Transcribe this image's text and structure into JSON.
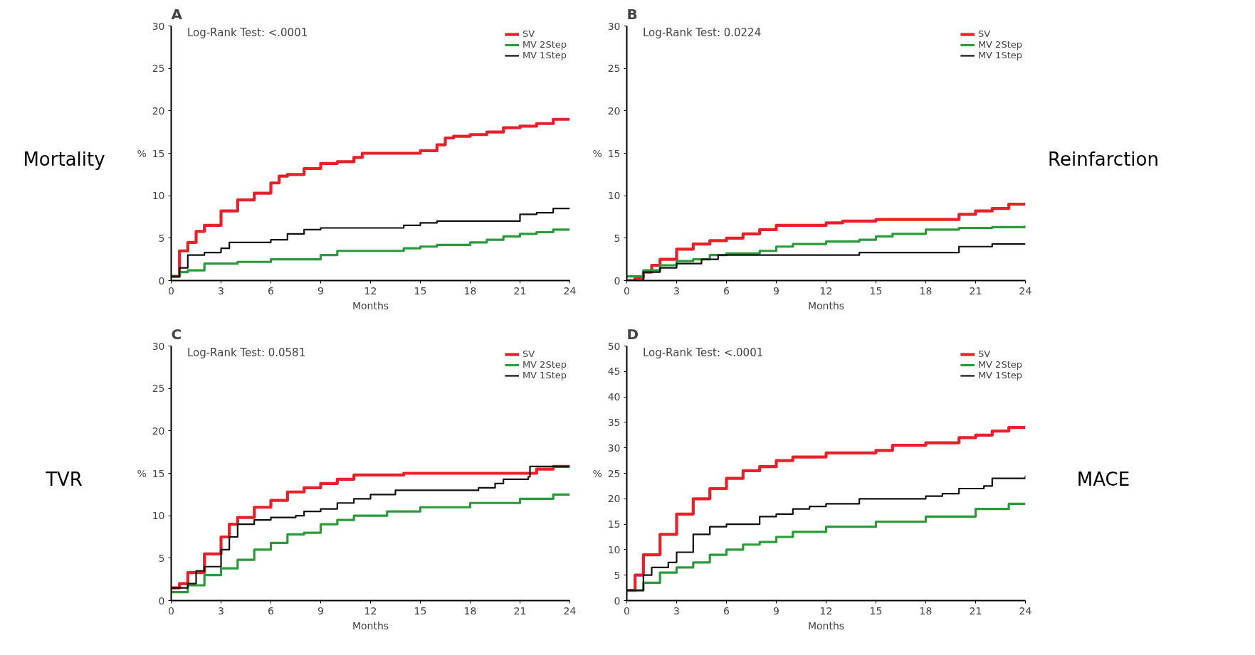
{
  "chart_data": [
    {
      "type": "step",
      "title": "A",
      "xlabel": "Months",
      "ylabel": "%",
      "annotations": [
        "Log-Rank Test: <.0001",
        "Mortality"
      ],
      "xlim": [
        0,
        24
      ],
      "ylim": [
        0,
        30
      ],
      "xticks": [
        0,
        3,
        6,
        9,
        12,
        15,
        18,
        21,
        24
      ],
      "yticks": [
        0,
        5,
        10,
        15,
        20,
        25,
        30
      ],
      "legend": "top right",
      "series": [
        {
          "name": "SV",
          "color": "#e8202a",
          "x": [
            0,
            0.5,
            1,
            1.5,
            2,
            3,
            4,
            5,
            6,
            6.5,
            7,
            8,
            9,
            10,
            11,
            11.5,
            13,
            14,
            15,
            16,
            16.5,
            17,
            18,
            19,
            20,
            21,
            22,
            23,
            24
          ],
          "values": [
            0.5,
            3.5,
            4.5,
            5.8,
            6.5,
            8.2,
            9.5,
            10.3,
            11.5,
            12.3,
            12.5,
            13.2,
            13.8,
            14,
            14.5,
            15,
            15,
            15,
            15.3,
            16,
            16.8,
            17,
            17.2,
            17.5,
            18,
            18.2,
            18.5,
            19,
            19
          ]
        },
        {
          "name": "MV 2Step",
          "color": "#2a9a3a",
          "x": [
            0,
            0.5,
            1,
            2,
            4,
            6,
            9,
            10,
            14,
            15,
            16,
            18,
            19,
            20,
            21,
            22,
            23,
            24
          ],
          "values": [
            0.5,
            1,
            1.2,
            2,
            2.2,
            2.5,
            3,
            3.5,
            3.8,
            4,
            4.2,
            4.5,
            4.8,
            5.2,
            5.5,
            5.7,
            6,
            6
          ]
        },
        {
          "name": "MV 1Step",
          "color": "#111111",
          "x": [
            0,
            0.5,
            1,
            2,
            3,
            3.5,
            5,
            6,
            7,
            8,
            9,
            13,
            14,
            15,
            16,
            20,
            21,
            22,
            23,
            24
          ],
          "values": [
            0.5,
            1.5,
            3,
            3.3,
            3.8,
            4.5,
            4.5,
            4.8,
            5.5,
            6,
            6.2,
            6.2,
            6.5,
            6.8,
            7,
            7,
            7.8,
            8,
            8.5,
            8.5
          ]
        }
      ]
    },
    {
      "type": "step",
      "title": "B",
      "xlabel": "Months",
      "ylabel": "%",
      "annotations": [
        "Log-Rank Test: 0.0224",
        "Reinfarction"
      ],
      "xlim": [
        0,
        24
      ],
      "ylim": [
        0,
        30
      ],
      "xticks": [
        0,
        3,
        6,
        9,
        12,
        15,
        18,
        21,
        24
      ],
      "yticks": [
        0,
        5,
        10,
        15,
        20,
        25,
        30
      ],
      "legend": "top right",
      "series": [
        {
          "name": "SV",
          "color": "#e8202a",
          "x": [
            0,
            0.5,
            1,
            1.5,
            2,
            3,
            4,
            5,
            6,
            7,
            8,
            9,
            11,
            12,
            13,
            15,
            18,
            20,
            21,
            22,
            23,
            24
          ],
          "values": [
            0,
            0.3,
            1,
            1.8,
            2.5,
            3.7,
            4.3,
            4.7,
            5,
            5.5,
            6,
            6.5,
            6.5,
            6.8,
            7,
            7.2,
            7.2,
            7.8,
            8.2,
            8.5,
            9,
            9
          ]
        },
        {
          "name": "MV 2Step",
          "color": "#2a9a3a",
          "x": [
            0,
            1,
            2,
            3,
            4,
            5,
            6,
            8,
            9,
            10,
            12,
            13,
            14,
            15,
            16,
            18,
            20,
            22,
            24
          ],
          "values": [
            0.5,
            1.2,
            1.8,
            2.3,
            2.5,
            3,
            3.2,
            3.5,
            4,
            4.3,
            4.6,
            4.6,
            4.8,
            5.2,
            5.5,
            6,
            6.2,
            6.3,
            6.5
          ]
        },
        {
          "name": "MV 1Step",
          "color": "#111111",
          "x": [
            0,
            1,
            2,
            3,
            4,
            4.5,
            5.5,
            13.5,
            14,
            19.5,
            20,
            21.5,
            22,
            24
          ],
          "values": [
            0,
            1,
            1.5,
            2,
            2,
            2.5,
            3,
            3,
            3.3,
            3.3,
            4,
            4,
            4.3,
            4.3
          ]
        }
      ]
    },
    {
      "type": "step",
      "title": "C",
      "xlabel": "Months",
      "ylabel": "%",
      "annotations": [
        "Log-Rank Test: 0.0581",
        "TVR"
      ],
      "xlim": [
        0,
        24
      ],
      "ylim": [
        0,
        30
      ],
      "xticks": [
        0,
        3,
        6,
        9,
        12,
        15,
        18,
        21,
        24
      ],
      "yticks": [
        0,
        5,
        10,
        15,
        20,
        25,
        30
      ],
      "legend": "top right",
      "series": [
        {
          "name": "SV",
          "color": "#e8202a",
          "x": [
            0,
            0.5,
            1,
            2,
            3,
            3.5,
            4,
            5,
            6,
            7,
            8,
            9,
            10,
            11,
            14,
            21.5,
            22,
            23,
            24
          ],
          "values": [
            1.5,
            2,
            3.3,
            5.5,
            7.5,
            9,
            9.8,
            11,
            11.8,
            12.8,
            13.3,
            13.8,
            14.3,
            14.8,
            15,
            15,
            15.5,
            15.8,
            15.8
          ]
        },
        {
          "name": "MV 2Step",
          "color": "#2a9a3a",
          "x": [
            0,
            1,
            2,
            3,
            4,
            5,
            6,
            7,
            8,
            9,
            10,
            11,
            13,
            15,
            18,
            21,
            23,
            24
          ],
          "values": [
            1,
            1.8,
            3,
            3.8,
            4.8,
            6,
            6.8,
            7.8,
            8,
            9,
            9.5,
            10,
            10.5,
            11,
            11.5,
            12,
            12.5,
            12.5
          ]
        },
        {
          "name": "MV 1Step",
          "color": "#111111",
          "x": [
            0,
            1,
            1.5,
            2,
            2.7,
            3,
            3.5,
            4,
            5,
            6,
            7.5,
            8,
            9,
            10,
            11,
            12,
            13.5,
            18.5,
            19.5,
            20,
            21.5,
            21.6,
            24
          ],
          "values": [
            1.5,
            2,
            3.5,
            4,
            4,
            6,
            7.5,
            9,
            9.5,
            9.8,
            10,
            10.5,
            10.8,
            11.5,
            12,
            12.5,
            13,
            13.3,
            13.8,
            14.3,
            14.6,
            15.8,
            15.8
          ]
        }
      ]
    },
    {
      "type": "step",
      "title": "D",
      "xlabel": "Months",
      "ylabel": "%",
      "annotations": [
        "Log-Rank Test: <.0001",
        "MACE"
      ],
      "xlim": [
        0,
        24
      ],
      "ylim": [
        0,
        50
      ],
      "xticks": [
        0,
        3,
        6,
        9,
        12,
        15,
        18,
        21,
        24
      ],
      "yticks": [
        0,
        5,
        10,
        15,
        20,
        25,
        30,
        35,
        40,
        45,
        50
      ],
      "legend": "top right",
      "series": [
        {
          "name": "SV",
          "color": "#e8202a",
          "x": [
            0,
            0.5,
            1,
            2,
            3,
            4,
            5,
            6,
            7,
            8,
            9,
            10,
            12,
            15,
            16,
            18,
            20,
            21,
            22,
            23,
            24
          ],
          "values": [
            2,
            5,
            9,
            13,
            17,
            20,
            22,
            24,
            25.5,
            26.3,
            27.5,
            28.2,
            29,
            29.5,
            30.5,
            31,
            32,
            32.5,
            33.3,
            34,
            34
          ]
        },
        {
          "name": "MV 2Step",
          "color": "#2a9a3a",
          "x": [
            0,
            1,
            2,
            3,
            4,
            5,
            6,
            7,
            8,
            9,
            10,
            12,
            15,
            18,
            21,
            23,
            24
          ],
          "values": [
            2,
            3.5,
            5.5,
            6.5,
            7.5,
            9,
            10,
            11,
            11.5,
            12.5,
            13.5,
            14.5,
            15.5,
            16.5,
            18,
            19,
            19
          ]
        },
        {
          "name": "MV 1Step",
          "color": "#111111",
          "x": [
            0,
            1,
            1.5,
            2.5,
            3,
            4,
            5,
            6,
            8,
            9,
            10,
            11,
            12,
            14,
            18,
            19,
            20,
            21.5,
            22,
            24
          ],
          "values": [
            2,
            5,
            6.5,
            7.5,
            9.5,
            13,
            14.5,
            15,
            16.5,
            17,
            18,
            18.5,
            19,
            20,
            20.5,
            21,
            22,
            22.5,
            24,
            24.5
          ]
        }
      ]
    }
  ]
}
